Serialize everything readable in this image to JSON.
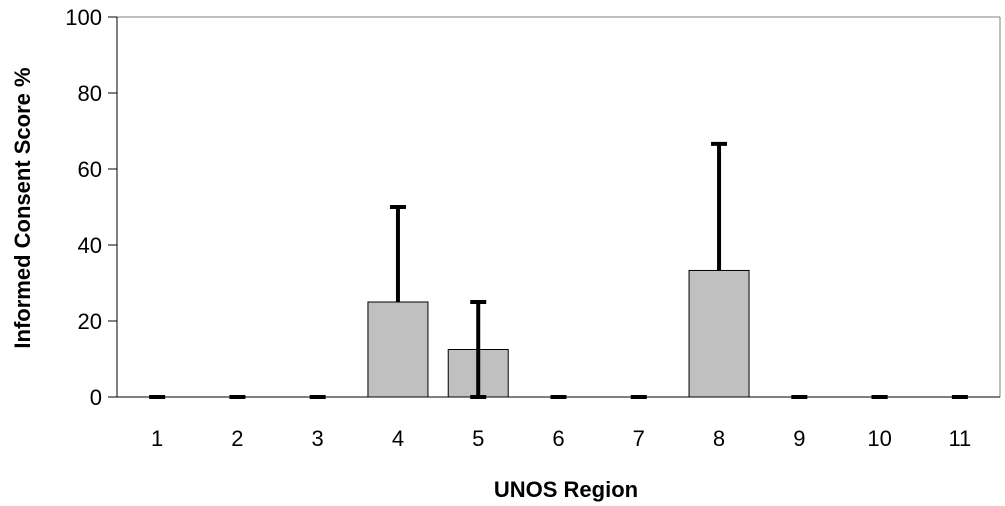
{
  "chart_data": {
    "type": "bar",
    "title": "",
    "xlabel": "UNOS Region",
    "ylabel": "Informed Consent Score %",
    "ylim": [
      0,
      100
    ],
    "yticks": [
      0,
      20,
      40,
      60,
      80,
      100
    ],
    "categories": [
      "1",
      "2",
      "3",
      "4",
      "5",
      "6",
      "7",
      "8",
      "9",
      "10",
      "11"
    ],
    "values": [
      0,
      0,
      0,
      25,
      12.5,
      0,
      0,
      33.3,
      0,
      0,
      0
    ],
    "error_upper": [
      0,
      0,
      0,
      25,
      12.5,
      0,
      0,
      33.3,
      0,
      0,
      0
    ],
    "error_lower": [
      0,
      0,
      0,
      0,
      12.5,
      0,
      0,
      0,
      0,
      0.5,
      0
    ],
    "grid": false,
    "legend": "none",
    "colors": {
      "bar": "#c0c0c0",
      "bar_stroke": "#000000",
      "error_bar": "#000000",
      "axis": "#000000"
    }
  }
}
